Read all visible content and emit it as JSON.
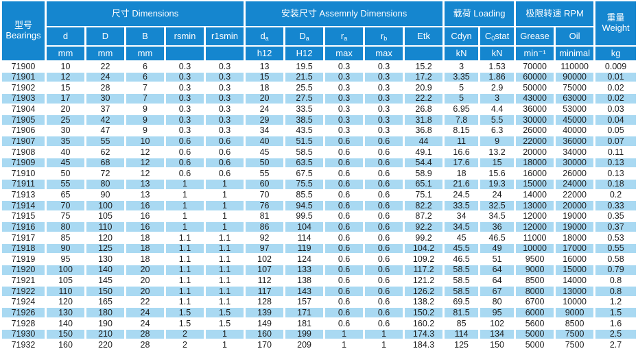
{
  "table": {
    "bearings_header": {
      "zh": "型号",
      "en": "Bearings"
    },
    "groups": {
      "dimensions": "尺寸 Dimensions",
      "assembly": "安装尺寸 Assemnly Dimensions",
      "loading": "载荷 Loading",
      "rpm": "极限转速 RPM"
    },
    "weight_header": {
      "zh": "重量",
      "en": "Weight"
    },
    "columns": [
      {
        "base": "d",
        "sub": "",
        "suffix": ""
      },
      {
        "base": "D",
        "sub": "",
        "suffix": ""
      },
      {
        "base": "B",
        "sub": "",
        "suffix": ""
      },
      {
        "base": "rsmin",
        "sub": "",
        "suffix": ""
      },
      {
        "base": "r1smin",
        "sub": "",
        "suffix": ""
      },
      {
        "base": "d",
        "sub": "a",
        "suffix": ""
      },
      {
        "base": "D",
        "sub": "a",
        "suffix": ""
      },
      {
        "base": "r",
        "sub": "a",
        "suffix": ""
      },
      {
        "base": "r",
        "sub": "b",
        "suffix": ""
      },
      {
        "base": "Etk",
        "sub": "",
        "suffix": ""
      },
      {
        "base": "Cdyn",
        "sub": "",
        "suffix": ""
      },
      {
        "base": "C",
        "sub": "0",
        "suffix": "stat"
      },
      {
        "base": "Grease",
        "sub": "",
        "suffix": ""
      },
      {
        "base": "Oil",
        "sub": "",
        "suffix": ""
      }
    ],
    "units": [
      "mm",
      "mm",
      "mm",
      "",
      "",
      "h12",
      "H12",
      "max",
      "max",
      "",
      "kN",
      "kN",
      "min⁻¹",
      "minimal",
      "kg"
    ],
    "colors": {
      "header_blue": "#1586cf",
      "stripe_blue": "#a9d9f2",
      "body_text": "#1c1c1c",
      "header_text": "#ffffff"
    },
    "rows": [
      [
        "71900",
        "10",
        "22",
        "6",
        "0.3",
        "0.3",
        "13",
        "19.5",
        "0.3",
        "0.3",
        "15.2",
        "3",
        "1.53",
        "70000",
        "110000",
        "0.009"
      ],
      [
        "71901",
        "12",
        "24",
        "6",
        "0.3",
        "0.3",
        "15",
        "21.5",
        "0.3",
        "0.3",
        "17.2",
        "3.35",
        "1.86",
        "60000",
        "90000",
        "0.01"
      ],
      [
        "71902",
        "15",
        "28",
        "7",
        "0.3",
        "0.3",
        "18",
        "25.5",
        "0.3",
        "0.3",
        "20.9",
        "5",
        "2.9",
        "50000",
        "75000",
        "0.02"
      ],
      [
        "71903",
        "17",
        "30",
        "7",
        "0.3",
        "0.3",
        "20",
        "27.5",
        "0.3",
        "0.3",
        "22.2",
        "5",
        "3",
        "43000",
        "63000",
        "0.02"
      ],
      [
        "71904",
        "20",
        "37",
        "9",
        "0.3",
        "0.3",
        "24",
        "33.5",
        "0.3",
        "0.3",
        "26.8",
        "6.95",
        "4.4",
        "36000",
        "53000",
        "0.03"
      ],
      [
        "71905",
        "25",
        "42",
        "9",
        "0.3",
        "0.3",
        "29",
        "38.5",
        "0.3",
        "0.3",
        "31.8",
        "7.8",
        "5.5",
        "30000",
        "45000",
        "0.04"
      ],
      [
        "71906",
        "30",
        "47",
        "9",
        "0.3",
        "0.3",
        "34",
        "43.5",
        "0.3",
        "0.3",
        "36.8",
        "8.15",
        "6.3",
        "26000",
        "40000",
        "0.05"
      ],
      [
        "71907",
        "35",
        "55",
        "10",
        "0.6",
        "0.6",
        "40",
        "51.5",
        "0.6",
        "0.6",
        "44",
        "11",
        "9",
        "22000",
        "36000",
        "0.07"
      ],
      [
        "71908",
        "40",
        "62",
        "12",
        "0.6",
        "0.6",
        "45",
        "58.5",
        "0.6",
        "0.6",
        "49.1",
        "16.6",
        "13.2",
        "20000",
        "34000",
        "0.11"
      ],
      [
        "71909",
        "45",
        "68",
        "12",
        "0.6",
        "0.6",
        "50",
        "63.5",
        "0.6",
        "0.6",
        "54.4",
        "17.6",
        "15",
        "18000",
        "30000",
        "0.13"
      ],
      [
        "71910",
        "50",
        "72",
        "12",
        "0.6",
        "0.6",
        "55",
        "67.5",
        "0.6",
        "0.6",
        "58.9",
        "18",
        "15.6",
        "16000",
        "26000",
        "0.13"
      ],
      [
        "71911",
        "55",
        "80",
        "13",
        "1",
        "1",
        "60",
        "75.5",
        "0.6",
        "0.6",
        "65.1",
        "21.6",
        "19.3",
        "15000",
        "24000",
        "0.18"
      ],
      [
        "71913",
        "65",
        "90",
        "13",
        "1",
        "1",
        "70",
        "85.5",
        "0.6",
        "0.6",
        "75.1",
        "24.5",
        "24",
        "14000",
        "22000",
        "0.2"
      ],
      [
        "71914",
        "70",
        "100",
        "16",
        "1",
        "1",
        "76",
        "94.5",
        "0.6",
        "0.6",
        "82.2",
        "33.5",
        "32.5",
        "13000",
        "20000",
        "0.33"
      ],
      [
        "71915",
        "75",
        "105",
        "16",
        "1",
        "1",
        "81",
        "99.5",
        "0.6",
        "0.6",
        "87.2",
        "34",
        "34.5",
        "12000",
        "19000",
        "0.35"
      ],
      [
        "71916",
        "80",
        "110",
        "16",
        "1",
        "1",
        "86",
        "104",
        "0.6",
        "0.6",
        "92.2",
        "34.5",
        "36",
        "12000",
        "19000",
        "0.37"
      ],
      [
        "71917",
        "85",
        "120",
        "18",
        "1.1",
        "1.1",
        "92",
        "114",
        "0.6",
        "0.6",
        "99.2",
        "45",
        "46.5",
        "11000",
        "18000",
        "0.53"
      ],
      [
        "71918",
        "90",
        "125",
        "18",
        "1.1",
        "1.1",
        "97",
        "119",
        "0.6",
        "0.6",
        "104.2",
        "45.5",
        "49",
        "10000",
        "17000",
        "0.55"
      ],
      [
        "71919",
        "95",
        "130",
        "18",
        "1.1",
        "1.1",
        "102",
        "124",
        "0.6",
        "0.6",
        "109.2",
        "46.5",
        "51",
        "9500",
        "16000",
        "0.58"
      ],
      [
        "71920",
        "100",
        "140",
        "20",
        "1.1",
        "1.1",
        "107",
        "133",
        "0.6",
        "0.6",
        "117.2",
        "58.5",
        "64",
        "9000",
        "15000",
        "0.79"
      ],
      [
        "71921",
        "105",
        "145",
        "20",
        "1.1",
        "1.1",
        "112",
        "138",
        "0.6",
        "0.6",
        "121.2",
        "58.5",
        "64",
        "8500",
        "14000",
        "0.8"
      ],
      [
        "71922",
        "110",
        "150",
        "20",
        "1.1",
        "1.1",
        "117",
        "143",
        "0.6",
        "0.6",
        "126.2",
        "58.5",
        "67",
        "8000",
        "13000",
        "0.8"
      ],
      [
        "71924",
        "120",
        "165",
        "22",
        "1.1",
        "1.1",
        "128",
        "157",
        "0.6",
        "0.6",
        "138.2",
        "69.5",
        "80",
        "6700",
        "10000",
        "1.2"
      ],
      [
        "71926",
        "130",
        "180",
        "24",
        "1.5",
        "1.5",
        "139",
        "171",
        "0.6",
        "0.6",
        "150.2",
        "81.5",
        "95",
        "6000",
        "9000",
        "1.5"
      ],
      [
        "71928",
        "140",
        "190",
        "24",
        "1.5",
        "1.5",
        "149",
        "181",
        "0.6",
        "0.6",
        "160.2",
        "85",
        "102",
        "5600",
        "8500",
        "1.6"
      ],
      [
        "71930",
        "150",
        "210",
        "28",
        "2",
        "1",
        "160",
        "199",
        "1",
        "1",
        "174.3",
        "114",
        "134",
        "5000",
        "7500",
        "2.5"
      ],
      [
        "71932",
        "160",
        "220",
        "28",
        "2",
        "1",
        "170",
        "209",
        "1",
        "1",
        "184.3",
        "125",
        "150",
        "5000",
        "7500",
        "2.7"
      ]
    ]
  }
}
